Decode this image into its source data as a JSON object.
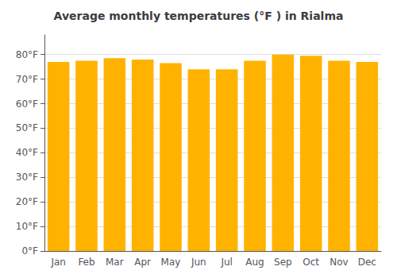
{
  "chart_data": {
    "type": "bar",
    "title": "Average monthly temperatures (°F ) in Rialma",
    "categories": [
      "Jan",
      "Feb",
      "Mar",
      "Apr",
      "May",
      "Jun",
      "Jul",
      "Aug",
      "Sep",
      "Oct",
      "Nov",
      "Dec"
    ],
    "values": [
      77.0,
      77.5,
      78.5,
      78.0,
      76.5,
      74.0,
      74.0,
      77.5,
      80.0,
      79.5,
      77.5,
      77.0
    ],
    "color": "#FFB300",
    "ylim": [
      0,
      88
    ],
    "yticks": [
      {
        "value": 0,
        "label": "0°F"
      },
      {
        "value": 10,
        "label": "10°F"
      },
      {
        "value": 20,
        "label": "20°F"
      },
      {
        "value": 30,
        "label": "30°F"
      },
      {
        "value": 40,
        "label": "40°F"
      },
      {
        "value": 50,
        "label": "50°F"
      },
      {
        "value": 60,
        "label": "60°F"
      },
      {
        "value": 70,
        "label": "70°F"
      },
      {
        "value": 80,
        "label": "80°F"
      }
    ],
    "grid": true
  }
}
